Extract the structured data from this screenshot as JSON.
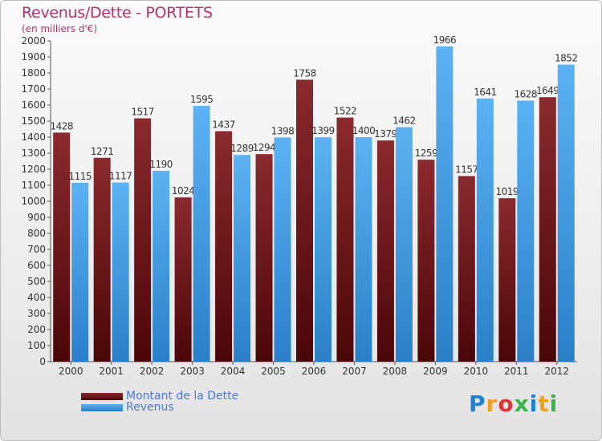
{
  "title": "Revenus/Dette - PORTETS",
  "subtitle": "(en milliers d'€)",
  "logo": {
    "text": "Proxiti",
    "letters": [
      "P",
      "r",
      "o",
      "x",
      "i",
      "t",
      "i"
    ]
  },
  "chart_data": {
    "type": "bar",
    "categories": [
      "2000",
      "2001",
      "2002",
      "2003",
      "2004",
      "2005",
      "2006",
      "2007",
      "2008",
      "2009",
      "2010",
      "2011",
      "2012"
    ],
    "series": [
      {
        "name": "Montant de la Dette",
        "color": "#7a1f23",
        "values": [
          1428,
          1271,
          1517,
          1024,
          1437,
          1294,
          1758,
          1522,
          1379,
          1259,
          1157,
          1019,
          1649
        ],
        "labels": [
          "1428",
          "1271",
          "1517",
          "1024",
          "1437",
          "1294",
          "1758",
          "1522",
          "1379",
          "1259",
          "1157",
          "1019",
          "1649"
        ]
      },
      {
        "name": "Revenus",
        "color": "#3d9be6",
        "values": [
          1115,
          1117,
          1190,
          1595,
          1289,
          1398,
          1399,
          1400,
          1462,
          1966,
          1641,
          1628,
          1852
        ],
        "labels": [
          "1115",
          "1117",
          "1190",
          "1595",
          "1289",
          "1398",
          "1399",
          "1400",
          "1462",
          "1966",
          "1641",
          "1628",
          "1852"
        ]
      }
    ],
    "ylim": [
      0,
      2000
    ],
    "yticks": [
      0,
      100,
      200,
      300,
      400,
      500,
      600,
      700,
      800,
      900,
      1000,
      1100,
      1200,
      1300,
      1400,
      1500,
      1600,
      1700,
      1800,
      1900,
      2000
    ],
    "xlabel": "",
    "ylabel": "",
    "grid": false,
    "legend_position": "bottom-left"
  }
}
